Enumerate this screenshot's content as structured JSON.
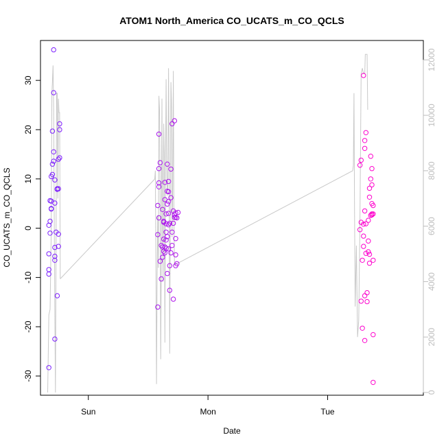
{
  "chart_data": {
    "type": "scatter",
    "title": "ATOM1 North_America CO_UCATS_m_CO_QCLS",
    "xlabel": "Date",
    "ylabel": "CO_UCATS_m_CO_QCLS",
    "x_axis": {
      "unit": "days",
      "range": [
        -0.4,
        2.8
      ],
      "ticks": [
        {
          "v": 0,
          "label": "Sun"
        },
        {
          "v": 1,
          "label": "Mon"
        },
        {
          "v": 2,
          "label": "Tue"
        }
      ]
    },
    "y_axis": {
      "range": [
        -33.9,
        38.1
      ],
      "ticks": [
        -30,
        -20,
        -10,
        0,
        10,
        20,
        30
      ]
    },
    "y2_axis": {
      "range": [
        -100,
        12700
      ],
      "ticks": [
        0,
        2000,
        4000,
        6000,
        8000,
        10000,
        12000
      ],
      "color": "#bdbdbd"
    },
    "colors": {
      "points_start": "#7B1FFF",
      "points_end": "#FF00CC",
      "line": "#c8c8c8"
    },
    "grid": false,
    "points": [
      {
        "x": -0.33,
        "y": -28.3
      },
      {
        "x": -0.33,
        "y": -9.3
      },
      {
        "x": -0.33,
        "y": -8.4
      },
      {
        "x": -0.33,
        "y": -5.2
      },
      {
        "x": -0.32,
        "y": -1.0
      },
      {
        "x": -0.33,
        "y": 0.6
      },
      {
        "x": -0.32,
        "y": 1.4
      },
      {
        "x": -0.32,
        "y": 5.6
      },
      {
        "x": -0.31,
        "y": 5.5
      },
      {
        "x": -0.31,
        "y": 3.9
      },
      {
        "x": -0.31,
        "y": 4.0
      },
      {
        "x": -0.31,
        "y": 10.5
      },
      {
        "x": -0.3,
        "y": 10.9
      },
      {
        "x": -0.3,
        "y": 13.0
      },
      {
        "x": -0.3,
        "y": 19.7
      },
      {
        "x": -0.29,
        "y": 15.5
      },
      {
        "x": -0.29,
        "y": 27.5
      },
      {
        "x": -0.29,
        "y": 36.2
      },
      {
        "x": -0.29,
        "y": 13.6
      },
      {
        "x": -0.28,
        "y": 9.8
      },
      {
        "x": -0.28,
        "y": 5.1
      },
      {
        "x": -0.28,
        "y": -3.9
      },
      {
        "x": -0.28,
        "y": -5.7
      },
      {
        "x": -0.28,
        "y": -6.5
      },
      {
        "x": -0.28,
        "y": -22.5
      },
      {
        "x": -0.27,
        "y": -0.8
      },
      {
        "x": -0.26,
        "y": 7.9
      },
      {
        "x": -0.26,
        "y": 8.0
      },
      {
        "x": -0.26,
        "y": -13.7
      },
      {
        "x": -0.25,
        "y": -3.7
      },
      {
        "x": -0.25,
        "y": -1.2
      },
      {
        "x": -0.25,
        "y": 8.0
      },
      {
        "x": -0.25,
        "y": 14.0
      },
      {
        "x": -0.24,
        "y": 14.3
      },
      {
        "x": -0.24,
        "y": 20.0
      },
      {
        "x": -0.24,
        "y": 21.2
      },
      {
        "x": 0.58,
        "y": -16.0
      },
      {
        "x": 0.58,
        "y": -1.3
      },
      {
        "x": 0.58,
        "y": 4.6
      },
      {
        "x": 0.59,
        "y": 19.1
      },
      {
        "x": 0.59,
        "y": 12.1
      },
      {
        "x": 0.59,
        "y": 9.2
      },
      {
        "x": 0.59,
        "y": 8.4
      },
      {
        "x": 0.59,
        "y": 2.1
      },
      {
        "x": 0.6,
        "y": 13.3
      },
      {
        "x": 0.6,
        "y": -6.7
      },
      {
        "x": 0.61,
        "y": -3.5
      },
      {
        "x": 0.61,
        "y": -10.3
      },
      {
        "x": 0.62,
        "y": 3.8
      },
      {
        "x": 0.62,
        "y": -3.8
      },
      {
        "x": 0.62,
        "y": -5.9
      },
      {
        "x": 0.63,
        "y": 1.4
      },
      {
        "x": 0.63,
        "y": 1.2
      },
      {
        "x": 0.63,
        "y": -2.2
      },
      {
        "x": 0.63,
        "y": -4.7
      },
      {
        "x": 0.64,
        "y": -3.8
      },
      {
        "x": 0.64,
        "y": -5.0
      },
      {
        "x": 0.64,
        "y": 9.3
      },
      {
        "x": 0.64,
        "y": 5.8
      },
      {
        "x": 0.65,
        "y": 0.9
      },
      {
        "x": 0.65,
        "y": -0.8
      },
      {
        "x": 0.65,
        "y": -2.4
      },
      {
        "x": 0.65,
        "y": -4.1
      },
      {
        "x": 0.65,
        "y": 2.9
      },
      {
        "x": 0.66,
        "y": 4.9
      },
      {
        "x": 0.66,
        "y": 7.5
      },
      {
        "x": 0.66,
        "y": 13.0
      },
      {
        "x": 0.66,
        "y": -1.7
      },
      {
        "x": 0.66,
        "y": -9.2
      },
      {
        "x": 0.67,
        "y": 3.0
      },
      {
        "x": 0.67,
        "y": 5.4
      },
      {
        "x": 0.67,
        "y": 7.4
      },
      {
        "x": 0.67,
        "y": 9.5
      },
      {
        "x": 0.67,
        "y": 0.7
      },
      {
        "x": 0.67,
        "y": -4.2
      },
      {
        "x": 0.68,
        "y": -7.6
      },
      {
        "x": 0.68,
        "y": -12.6
      },
      {
        "x": 0.68,
        "y": 1.0
      },
      {
        "x": 0.69,
        "y": 12.0
      },
      {
        "x": 0.69,
        "y": 6.2
      },
      {
        "x": 0.69,
        "y": -5.0
      },
      {
        "x": 0.7,
        "y": 21.2
      },
      {
        "x": 0.7,
        "y": -0.8
      },
      {
        "x": 0.7,
        "y": -3.5
      },
      {
        "x": 0.71,
        "y": 3.5
      },
      {
        "x": 0.71,
        "y": 1.0
      },
      {
        "x": 0.71,
        "y": -14.4
      },
      {
        "x": 0.72,
        "y": 21.8
      },
      {
        "x": 0.72,
        "y": 2.7
      },
      {
        "x": 0.72,
        "y": 2.2
      },
      {
        "x": 0.73,
        "y": 3.1
      },
      {
        "x": 0.73,
        "y": 2.2
      },
      {
        "x": 0.73,
        "y": -2.1
      },
      {
        "x": 0.73,
        "y": -5.4
      },
      {
        "x": 0.73,
        "y": -7.6
      },
      {
        "x": 0.74,
        "y": -7.2
      },
      {
        "x": 0.74,
        "y": 2.1
      },
      {
        "x": 0.75,
        "y": 3.2
      },
      {
        "x": 2.27,
        "y": -0.3
      },
      {
        "x": 2.27,
        "y": 12.8
      },
      {
        "x": 2.28,
        "y": 13.8
      },
      {
        "x": 2.28,
        "y": 1.2
      },
      {
        "x": 2.28,
        "y": -14.8
      },
      {
        "x": 2.29,
        "y": -20.3
      },
      {
        "x": 2.29,
        "y": -6.5
      },
      {
        "x": 2.3,
        "y": 31.0
      },
      {
        "x": 2.3,
        "y": 0.8
      },
      {
        "x": 2.3,
        "y": -1.6
      },
      {
        "x": 2.3,
        "y": -3.7
      },
      {
        "x": 2.31,
        "y": 3.5
      },
      {
        "x": 2.31,
        "y": 16.2
      },
      {
        "x": 2.31,
        "y": 17.8
      },
      {
        "x": 2.31,
        "y": -22.8
      },
      {
        "x": 2.31,
        "y": -13.7
      },
      {
        "x": 2.32,
        "y": 19.4
      },
      {
        "x": 2.32,
        "y": 0.9
      },
      {
        "x": 2.32,
        "y": -5.1
      },
      {
        "x": 2.33,
        "y": -13.1
      },
      {
        "x": 2.33,
        "y": -14.9
      },
      {
        "x": 2.34,
        "y": -4.8
      },
      {
        "x": 2.34,
        "y": -2.6
      },
      {
        "x": 2.34,
        "y": 1.6
      },
      {
        "x": 2.35,
        "y": 8.1
      },
      {
        "x": 2.35,
        "y": 6.3
      },
      {
        "x": 2.35,
        "y": -5.3
      },
      {
        "x": 2.35,
        "y": -7.1
      },
      {
        "x": 2.36,
        "y": 2.6
      },
      {
        "x": 2.36,
        "y": 10.0
      },
      {
        "x": 2.36,
        "y": 14.6
      },
      {
        "x": 2.37,
        "y": 8.8
      },
      {
        "x": 2.37,
        "y": 12.1
      },
      {
        "x": 2.37,
        "y": 2.9
      },
      {
        "x": 2.37,
        "y": 2.7
      },
      {
        "x": 2.37,
        "y": 5.0
      },
      {
        "x": 2.38,
        "y": 4.6
      },
      {
        "x": 2.38,
        "y": 2.9
      },
      {
        "x": 2.38,
        "y": -21.6
      },
      {
        "x": 2.38,
        "y": -31.3
      },
      {
        "x": 2.38,
        "y": -6.5
      }
    ],
    "line_series": {
      "axis": "y2",
      "points": [
        {
          "x": -0.34,
          "y": 0
        },
        {
          "x": -0.33,
          "y": 2800
        },
        {
          "x": -0.32,
          "y": 3000
        },
        {
          "x": -0.31,
          "y": 5900
        },
        {
          "x": -0.305,
          "y": 10800
        },
        {
          "x": -0.3,
          "y": 11200
        },
        {
          "x": -0.295,
          "y": 11800
        },
        {
          "x": -0.29,
          "y": 10200
        },
        {
          "x": -0.285,
          "y": 6200
        },
        {
          "x": -0.28,
          "y": 3000
        },
        {
          "x": -0.275,
          "y": 0
        },
        {
          "x": -0.27,
          "y": 5600
        },
        {
          "x": -0.265,
          "y": 10800
        },
        {
          "x": -0.26,
          "y": 10800
        },
        {
          "x": -0.255,
          "y": 7000
        },
        {
          "x": -0.25,
          "y": 10600
        },
        {
          "x": -0.245,
          "y": 10100
        },
        {
          "x": -0.24,
          "y": 10100
        },
        {
          "x": -0.235,
          "y": 4100
        },
        {
          "x": 0.555,
          "y": 7700
        },
        {
          "x": 0.56,
          "y": 8000
        },
        {
          "x": 0.565,
          "y": 4400
        },
        {
          "x": 0.57,
          "y": 300
        },
        {
          "x": 0.575,
          "y": 4200
        },
        {
          "x": 0.58,
          "y": 6400
        },
        {
          "x": 0.585,
          "y": 4500
        },
        {
          "x": 0.59,
          "y": 10700
        },
        {
          "x": 0.595,
          "y": 10200
        },
        {
          "x": 0.6,
          "y": 7100
        },
        {
          "x": 0.605,
          "y": 1200
        },
        {
          "x": 0.61,
          "y": 4900
        },
        {
          "x": 0.615,
          "y": 10600
        },
        {
          "x": 0.62,
          "y": 6100
        },
        {
          "x": 0.625,
          "y": 4000
        },
        {
          "x": 0.63,
          "y": 9700
        },
        {
          "x": 0.635,
          "y": 8600
        },
        {
          "x": 0.64,
          "y": 1800
        },
        {
          "x": 0.645,
          "y": 7900
        },
        {
          "x": 0.65,
          "y": 11300
        },
        {
          "x": 0.655,
          "y": 8200
        },
        {
          "x": 0.66,
          "y": 7100
        },
        {
          "x": 0.665,
          "y": 7500
        },
        {
          "x": 0.67,
          "y": 11700
        },
        {
          "x": 0.675,
          "y": 8300
        },
        {
          "x": 0.68,
          "y": 1400
        },
        {
          "x": 0.685,
          "y": 6400
        },
        {
          "x": 0.69,
          "y": 11200
        },
        {
          "x": 0.695,
          "y": 10500
        },
        {
          "x": 0.7,
          "y": 5600
        },
        {
          "x": 0.705,
          "y": 7500
        },
        {
          "x": 0.71,
          "y": 11600
        },
        {
          "x": 0.715,
          "y": 6400
        },
        {
          "x": 0.72,
          "y": 4600
        },
        {
          "x": 2.21,
          "y": 8000
        },
        {
          "x": 2.215,
          "y": 8200
        },
        {
          "x": 2.22,
          "y": 10800
        },
        {
          "x": 2.225,
          "y": 6600
        },
        {
          "x": 2.23,
          "y": 3100
        },
        {
          "x": 2.24,
          "y": 5300
        },
        {
          "x": 2.25,
          "y": 2000
        },
        {
          "x": 2.26,
          "y": 2600
        },
        {
          "x": 2.27,
          "y": 6200
        },
        {
          "x": 2.28,
          "y": 11500
        },
        {
          "x": 2.29,
          "y": 11700
        },
        {
          "x": 2.3,
          "y": 11500
        },
        {
          "x": 2.31,
          "y": 11500
        },
        {
          "x": 2.315,
          "y": 12200
        },
        {
          "x": 2.33,
          "y": 12200
        },
        {
          "x": 2.335,
          "y": 10200
        }
      ],
      "extra_path": [
        {
          "x": -0.235,
          "y": 4100
        },
        {
          "x": 0.555,
          "y": 7700
        }
      ],
      "extra_path2": [
        {
          "x": 0.72,
          "y": 4600
        },
        {
          "x": 2.21,
          "y": 8000
        }
      ]
    }
  }
}
